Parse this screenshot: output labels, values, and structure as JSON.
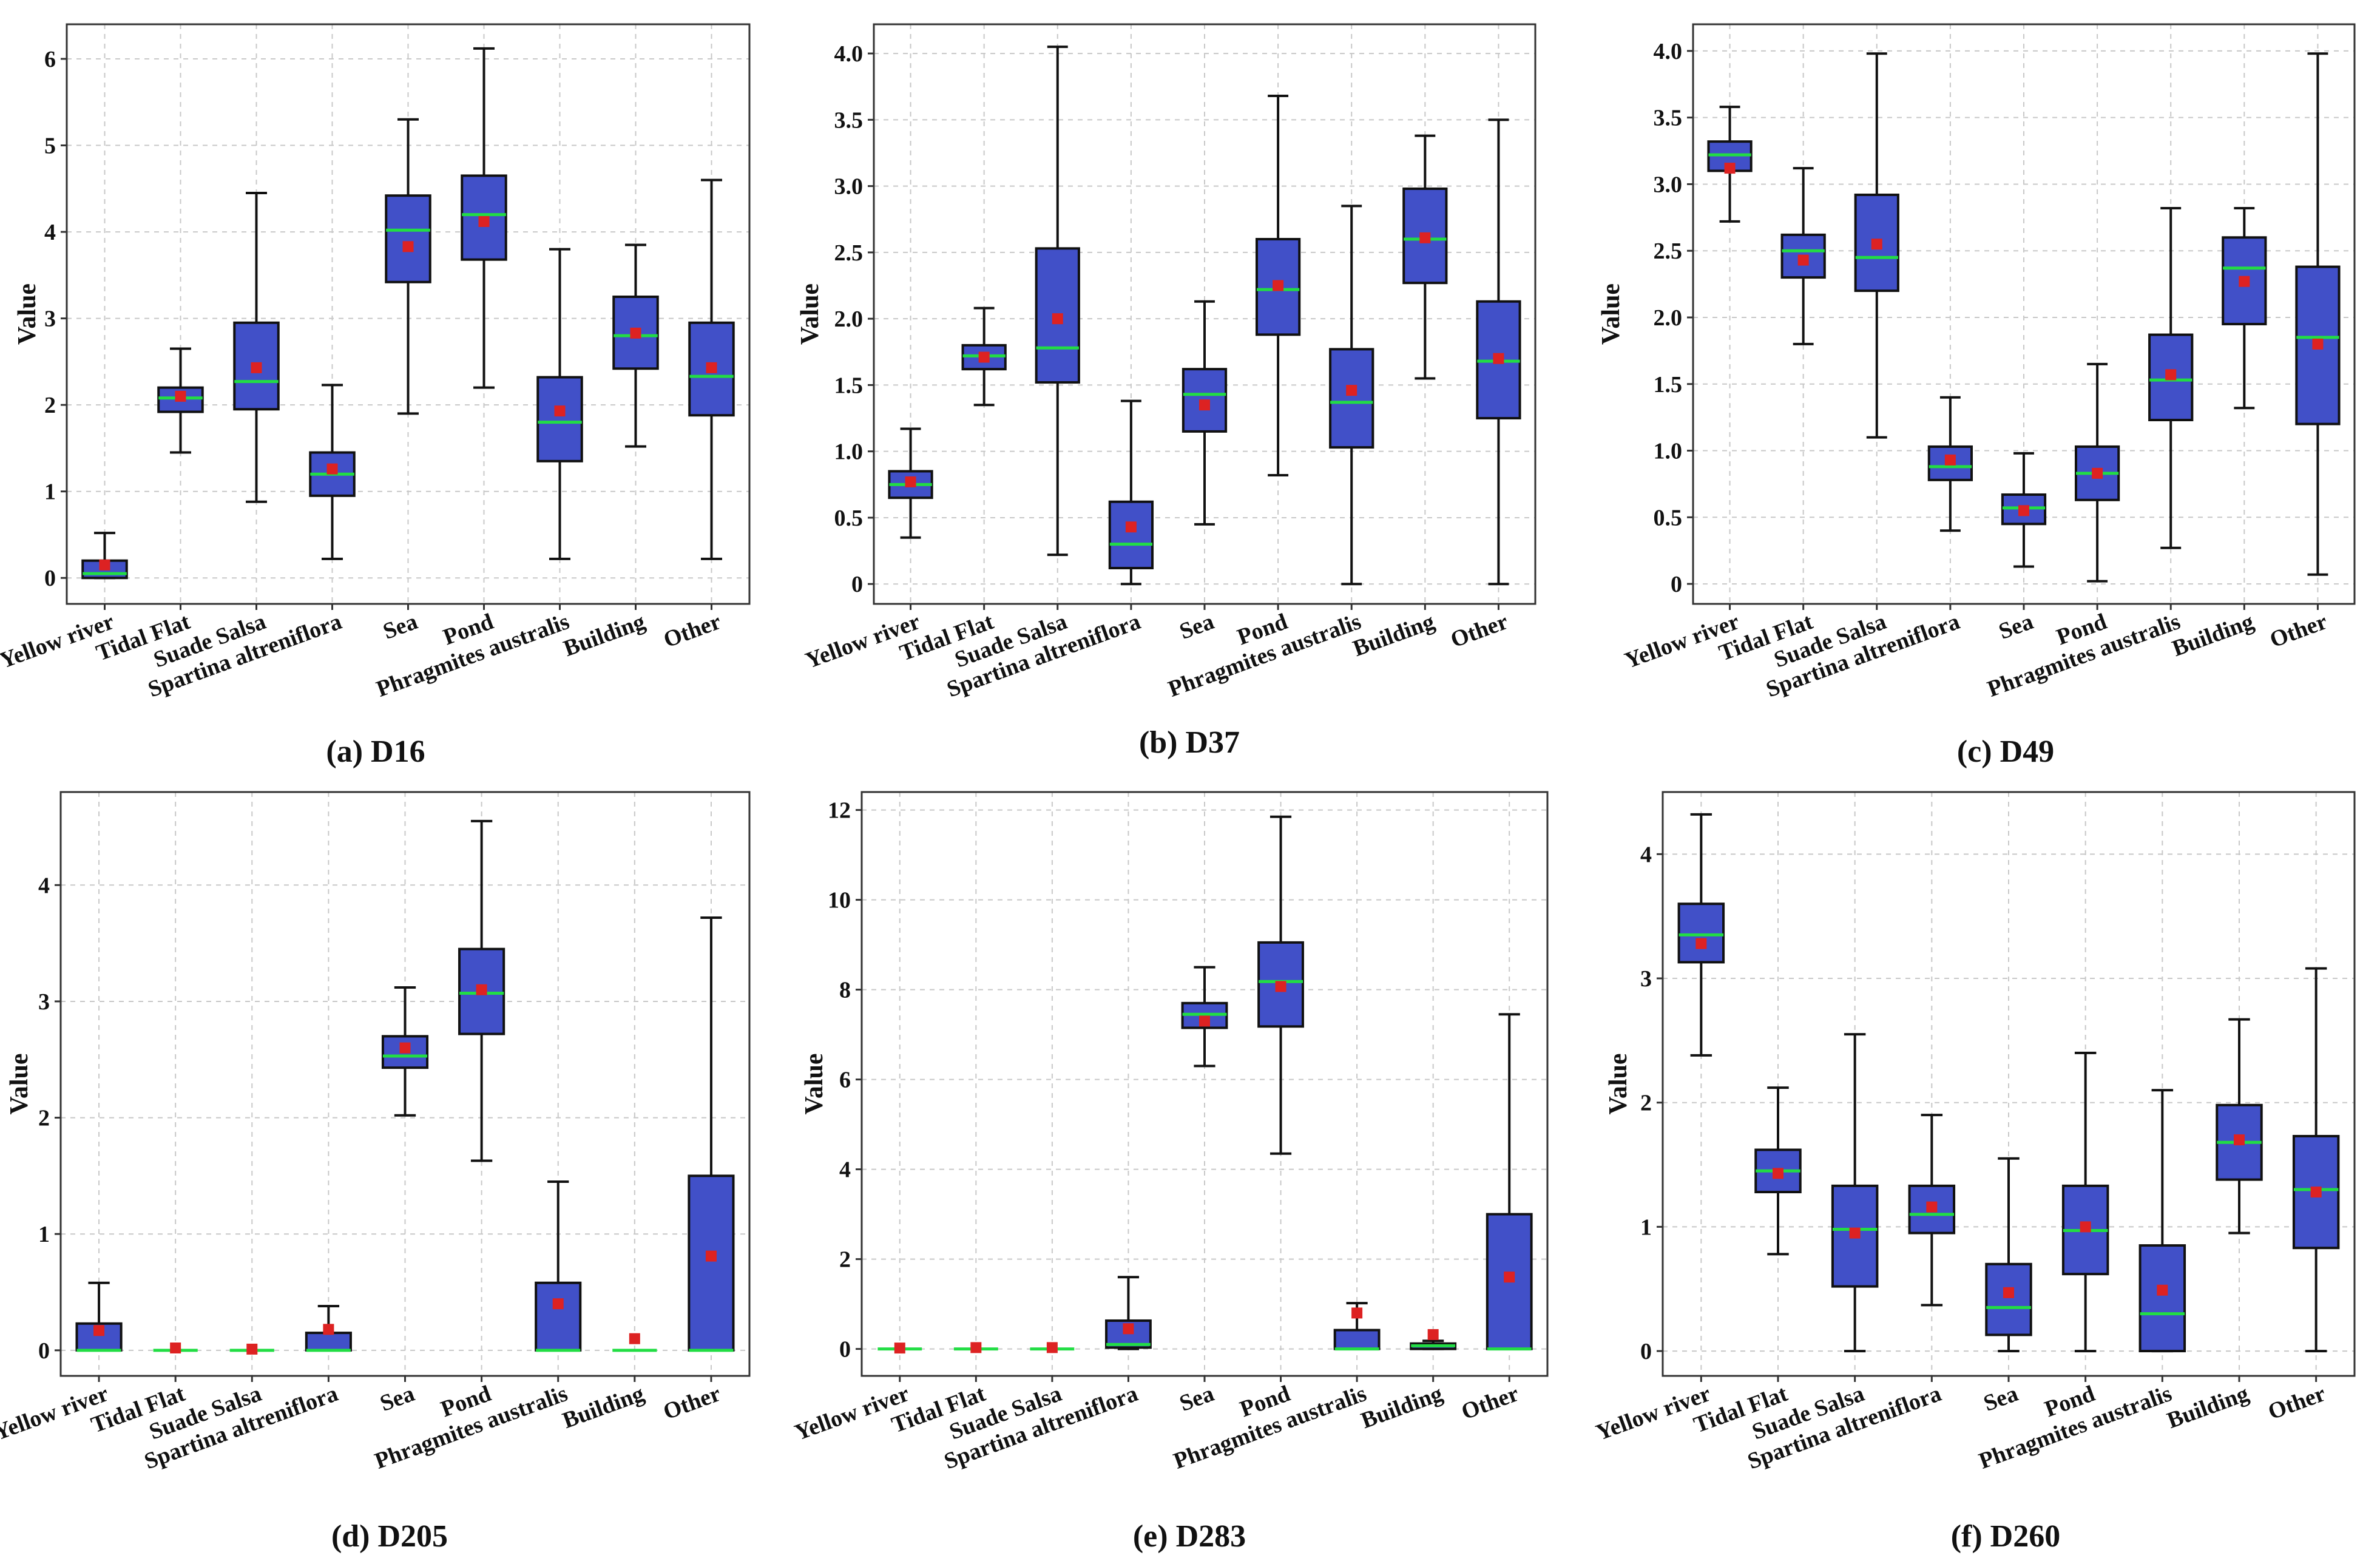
{
  "colors": {
    "box": "#4150c8",
    "median": "#22dd44",
    "mean": "#dd2222"
  },
  "chart_data": [
    {
      "type": "box",
      "caption": "(a) D16",
      "ylabel": "Value",
      "ylim": [
        -0.3,
        6.4
      ],
      "yticks": [
        0,
        1,
        2,
        3,
        4,
        5,
        6
      ],
      "yticklabels": [
        "0",
        "1",
        "2",
        "3",
        "4",
        "5",
        "6"
      ],
      "categories": [
        "Yellow river",
        "Tidal Flat",
        "Suade Salsa",
        "Spartina altreniflora",
        "Sea",
        "Pond",
        "Phragmites australis",
        "Building",
        "Other"
      ],
      "boxes": [
        {
          "min": 0,
          "q1": 0,
          "median": 0.05,
          "q3": 0.2,
          "max": 0.52,
          "mean": 0.15
        },
        {
          "min": 1.45,
          "q1": 1.92,
          "median": 2.08,
          "q3": 2.2,
          "max": 2.65,
          "mean": 2.1
        },
        {
          "min": 0.88,
          "q1": 1.95,
          "median": 2.27,
          "q3": 2.95,
          "max": 4.45,
          "mean": 2.43
        },
        {
          "min": 0.22,
          "q1": 0.95,
          "median": 1.2,
          "q3": 1.45,
          "max": 2.23,
          "mean": 1.26
        },
        {
          "min": 1.9,
          "q1": 3.42,
          "median": 4.02,
          "q3": 4.42,
          "max": 5.3,
          "mean": 3.83
        },
        {
          "min": 2.2,
          "q1": 3.68,
          "median": 4.2,
          "q3": 4.65,
          "max": 6.12,
          "mean": 4.12
        },
        {
          "min": 0.22,
          "q1": 1.35,
          "median": 1.8,
          "q3": 2.32,
          "max": 3.8,
          "mean": 1.93
        },
        {
          "min": 1.52,
          "q1": 2.42,
          "median": 2.8,
          "q3": 3.25,
          "max": 3.85,
          "mean": 2.83
        },
        {
          "min": 0.22,
          "q1": 1.88,
          "median": 2.33,
          "q3": 2.95,
          "max": 4.6,
          "mean": 2.43
        }
      ]
    },
    {
      "type": "box",
      "caption": "(b) D37",
      "ylabel": "Value",
      "ylim": [
        -0.15,
        4.22
      ],
      "yticks": [
        0,
        0.5,
        1,
        1.5,
        2,
        2.5,
        3,
        3.5,
        4
      ],
      "yticklabels": [
        "0",
        "0.5",
        "1.0",
        "1.5",
        "2.0",
        "2.5",
        "3.0",
        "3.5",
        "4.0"
      ],
      "categories": [
        "Yellow river",
        "Tidal Flat",
        "Suade Salsa",
        "Spartina altreniflora",
        "Sea",
        "Pond",
        "Phragmites australis",
        "Building",
        "Other"
      ],
      "boxes": [
        {
          "min": 0.35,
          "q1": 0.65,
          "median": 0.75,
          "q3": 0.85,
          "max": 1.17,
          "mean": 0.77
        },
        {
          "min": 1.35,
          "q1": 1.62,
          "median": 1.72,
          "q3": 1.8,
          "max": 2.08,
          "mean": 1.71
        },
        {
          "min": 0.22,
          "q1": 1.52,
          "median": 1.78,
          "q3": 2.53,
          "max": 4.05,
          "mean": 2.0
        },
        {
          "min": 0,
          "q1": 0.12,
          "median": 0.3,
          "q3": 0.62,
          "max": 1.38,
          "mean": 0.43
        },
        {
          "min": 0.45,
          "q1": 1.15,
          "median": 1.43,
          "q3": 1.62,
          "max": 2.13,
          "mean": 1.35
        },
        {
          "min": 0.82,
          "q1": 1.88,
          "median": 2.22,
          "q3": 2.6,
          "max": 3.68,
          "mean": 2.25
        },
        {
          "min": 0,
          "q1": 1.03,
          "median": 1.37,
          "q3": 1.77,
          "max": 2.85,
          "mean": 1.46
        },
        {
          "min": 1.55,
          "q1": 2.27,
          "median": 2.6,
          "q3": 2.98,
          "max": 3.38,
          "mean": 2.61
        },
        {
          "min": 0,
          "q1": 1.25,
          "median": 1.68,
          "q3": 2.13,
          "max": 3.5,
          "mean": 1.7
        }
      ]
    },
    {
      "type": "box",
      "caption": "(c) D49",
      "ylabel": "Value",
      "ylim": [
        -0.15,
        4.2
      ],
      "yticks": [
        0,
        0.5,
        1,
        1.5,
        2,
        2.5,
        3,
        3.5,
        4
      ],
      "yticklabels": [
        "0",
        "0.5",
        "1.0",
        "1.5",
        "2.0",
        "2.5",
        "3.0",
        "3.5",
        "4.0"
      ],
      "categories": [
        "Yellow river",
        "Tidal Flat",
        "Suade Salsa",
        "Spartina altreniflora",
        "Sea",
        "Pond",
        "Phragmites australis",
        "Building",
        "Other"
      ],
      "boxes": [
        {
          "min": 2.72,
          "q1": 3.1,
          "median": 3.22,
          "q3": 3.32,
          "max": 3.58,
          "mean": 3.12
        },
        {
          "min": 1.8,
          "q1": 2.3,
          "median": 2.5,
          "q3": 2.62,
          "max": 3.12,
          "mean": 2.43
        },
        {
          "min": 1.1,
          "q1": 2.2,
          "median": 2.45,
          "q3": 2.92,
          "max": 3.98,
          "mean": 2.55
        },
        {
          "min": 0.4,
          "q1": 0.78,
          "median": 0.88,
          "q3": 1.03,
          "max": 1.4,
          "mean": 0.93
        },
        {
          "min": 0.13,
          "q1": 0.45,
          "median": 0.57,
          "q3": 0.67,
          "max": 0.98,
          "mean": 0.55
        },
        {
          "min": 0.02,
          "q1": 0.63,
          "median": 0.83,
          "q3": 1.03,
          "max": 1.65,
          "mean": 0.83
        },
        {
          "min": 0.27,
          "q1": 1.23,
          "median": 1.53,
          "q3": 1.87,
          "max": 2.82,
          "mean": 1.57
        },
        {
          "min": 1.32,
          "q1": 1.95,
          "median": 2.37,
          "q3": 2.6,
          "max": 2.82,
          "mean": 2.27
        },
        {
          "min": 0.07,
          "q1": 1.2,
          "median": 1.85,
          "q3": 2.38,
          "max": 3.98,
          "mean": 1.8
        }
      ]
    },
    {
      "type": "box",
      "caption": "(d) D205",
      "ylabel": "Value",
      "ylim": [
        -0.22,
        4.8
      ],
      "yticks": [
        0,
        1,
        2,
        3,
        4
      ],
      "yticklabels": [
        "0",
        "1",
        "2",
        "3",
        "4"
      ],
      "categories": [
        "Yellow river",
        "Tidal Flat",
        "Suade Salsa",
        "Spartina altreniflora",
        "Sea",
        "Pond",
        "Phragmites australis",
        "Building",
        "Other"
      ],
      "boxes": [
        {
          "min": 0,
          "q1": 0,
          "median": 0,
          "q3": 0.23,
          "max": 0.58,
          "mean": 0.17
        },
        {
          "min": 0,
          "q1": 0,
          "median": 0,
          "q3": 0,
          "max": 0,
          "mean": 0.02
        },
        {
          "min": 0,
          "q1": 0,
          "median": 0,
          "q3": 0,
          "max": 0,
          "mean": 0.01
        },
        {
          "min": 0,
          "q1": 0,
          "median": 0,
          "q3": 0.15,
          "max": 0.38,
          "mean": 0.18
        },
        {
          "min": 2.02,
          "q1": 2.43,
          "median": 2.53,
          "q3": 2.7,
          "max": 3.12,
          "mean": 2.6
        },
        {
          "min": 1.63,
          "q1": 2.72,
          "median": 3.07,
          "q3": 3.45,
          "max": 4.55,
          "mean": 3.1
        },
        {
          "min": 0,
          "q1": 0,
          "median": 0,
          "q3": 0.58,
          "max": 1.45,
          "mean": 0.4
        },
        {
          "min": 0,
          "q1": 0,
          "median": 0,
          "q3": 0,
          "max": 0,
          "mean": 0.1
        },
        {
          "min": 0,
          "q1": 0,
          "median": 0,
          "q3": 1.5,
          "max": 3.72,
          "mean": 0.81
        }
      ]
    },
    {
      "type": "box",
      "caption": "(e) D283",
      "ylabel": "Value",
      "ylim": [
        -0.6,
        12.4
      ],
      "yticks": [
        0,
        2,
        4,
        6,
        8,
        10,
        12
      ],
      "yticklabels": [
        "0",
        "2",
        "4",
        "6",
        "8",
        "10",
        "12"
      ],
      "categories": [
        "Yellow river",
        "Tidal Flat",
        "Suade Salsa",
        "Spartina altreniflora",
        "Sea",
        "Pond",
        "Phragmites australis",
        "Building",
        "Other"
      ],
      "boxes": [
        {
          "min": 0,
          "q1": 0,
          "median": 0,
          "q3": 0,
          "max": 0,
          "mean": 0.02
        },
        {
          "min": 0,
          "q1": 0,
          "median": 0,
          "q3": 0,
          "max": 0,
          "mean": 0.03
        },
        {
          "min": 0,
          "q1": 0,
          "median": 0,
          "q3": 0,
          "max": 0,
          "mean": 0.03
        },
        {
          "min": 0,
          "q1": 0.03,
          "median": 0.1,
          "q3": 0.63,
          "max": 1.6,
          "mean": 0.45
        },
        {
          "min": 6.3,
          "q1": 7.15,
          "median": 7.45,
          "q3": 7.7,
          "max": 8.5,
          "mean": 7.3
        },
        {
          "min": 4.35,
          "q1": 7.18,
          "median": 8.18,
          "q3": 9.05,
          "max": 11.85,
          "mean": 8.07
        },
        {
          "min": 0,
          "q1": 0,
          "median": 0,
          "q3": 0.42,
          "max": 1.02,
          "mean": 0.8
        },
        {
          "min": 0,
          "q1": 0,
          "median": 0.07,
          "q3": 0.12,
          "max": 0.18,
          "mean": 0.32
        },
        {
          "min": 0,
          "q1": 0,
          "median": 0,
          "q3": 3.0,
          "max": 7.45,
          "mean": 1.6
        }
      ]
    },
    {
      "type": "box",
      "caption": "(f) D260",
      "ylabel": "Value",
      "ylim": [
        -0.2,
        4.5
      ],
      "yticks": [
        0,
        1,
        2,
        3,
        4
      ],
      "yticklabels": [
        "0",
        "1",
        "2",
        "3",
        "4"
      ],
      "categories": [
        "Yellow river",
        "Tidal Flat",
        "Suade Salsa",
        "Spartina altreniflora",
        "Sea",
        "Pond",
        "Phragmites australis",
        "Building",
        "Other"
      ],
      "boxes": [
        {
          "min": 2.38,
          "q1": 3.13,
          "median": 3.35,
          "q3": 3.6,
          "max": 4.32,
          "mean": 3.28
        },
        {
          "min": 0.78,
          "q1": 1.28,
          "median": 1.45,
          "q3": 1.62,
          "max": 2.12,
          "mean": 1.43
        },
        {
          "min": 0,
          "q1": 0.52,
          "median": 0.98,
          "q3": 1.33,
          "max": 2.55,
          "mean": 0.95
        },
        {
          "min": 0.37,
          "q1": 0.95,
          "median": 1.1,
          "q3": 1.33,
          "max": 1.9,
          "mean": 1.16
        },
        {
          "min": 0,
          "q1": 0.13,
          "median": 0.35,
          "q3": 0.7,
          "max": 1.55,
          "mean": 0.47
        },
        {
          "min": 0,
          "q1": 0.62,
          "median": 0.97,
          "q3": 1.33,
          "max": 2.4,
          "mean": 1.0
        },
        {
          "min": 0,
          "q1": 0,
          "median": 0.3,
          "q3": 0.85,
          "max": 2.1,
          "mean": 0.49
        },
        {
          "min": 0.95,
          "q1": 1.38,
          "median": 1.68,
          "q3": 1.98,
          "max": 2.67,
          "mean": 1.7
        },
        {
          "min": 0,
          "q1": 0.83,
          "median": 1.3,
          "q3": 1.73,
          "max": 3.08,
          "mean": 1.28
        }
      ]
    }
  ]
}
